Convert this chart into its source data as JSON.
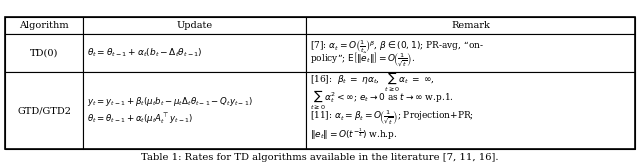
{
  "figsize": [
    6.4,
    1.65
  ],
  "dpi": 100,
  "bg_color": "#ffffff",
  "lc": "#000000",
  "header_labels": [
    "Algorithm",
    "Update",
    "Remark"
  ],
  "row1_algo": "TD(0)",
  "row1_update": "$\\theta_t = \\theta_{t-1} + \\alpha_t(b_t - \\Delta_t\\theta_{t-1})$",
  "row1_remark_l1": "[7]: $\\alpha_t = O\\left(\\frac{1}{t}\\right)^{\\beta}$, $\\beta \\in (0,1)$; PR-avg, “on-",
  "row1_remark_l2": "policy”; $\\mathrm{E}\\left[\\|\\hat{e}_t\\|\\right] = O\\!\\left(\\frac{1}{\\sqrt{t}}\\right)$.",
  "row2_algo": "GTD/GTD2",
  "row2_update_l1": "$y_t = y_{t-1} + \\beta_t(\\mu_t b_t - \\mu_t\\Delta_t\\theta_{t-1} - Q_t y_{t-1})$",
  "row2_update_l2": "$\\theta_t = \\theta_{t-1} + \\alpha_t(\\mu_t A_t^\\top y_{t-1})$",
  "row2_remark_l1": "[16]:  $\\beta_t \\;=\\; \\eta\\alpha_t$,  $\\sum_{t\\geq 0} \\alpha_t \\;=\\; \\infty$,",
  "row2_remark_l2": "$\\sum_{t\\geq 0} \\alpha_t^2 < \\infty$; $e_t \\to 0$ as $t \\to \\infty$ w.p.1.",
  "row2_remark_l3": "[11]: $\\alpha_t = \\beta_t = O\\!\\left(\\frac{1}{\\sqrt{t}}\\right)$; Projection+PR;",
  "row2_remark_l4": "$\\|e_t\\| = O(t^{-\\frac{1}{4}})$ w.h.p.",
  "caption": "Table 1: Rates for TD algorithms available in the literature [7, 11, 16].",
  "font_size": 7.0,
  "caption_font_size": 7.2
}
